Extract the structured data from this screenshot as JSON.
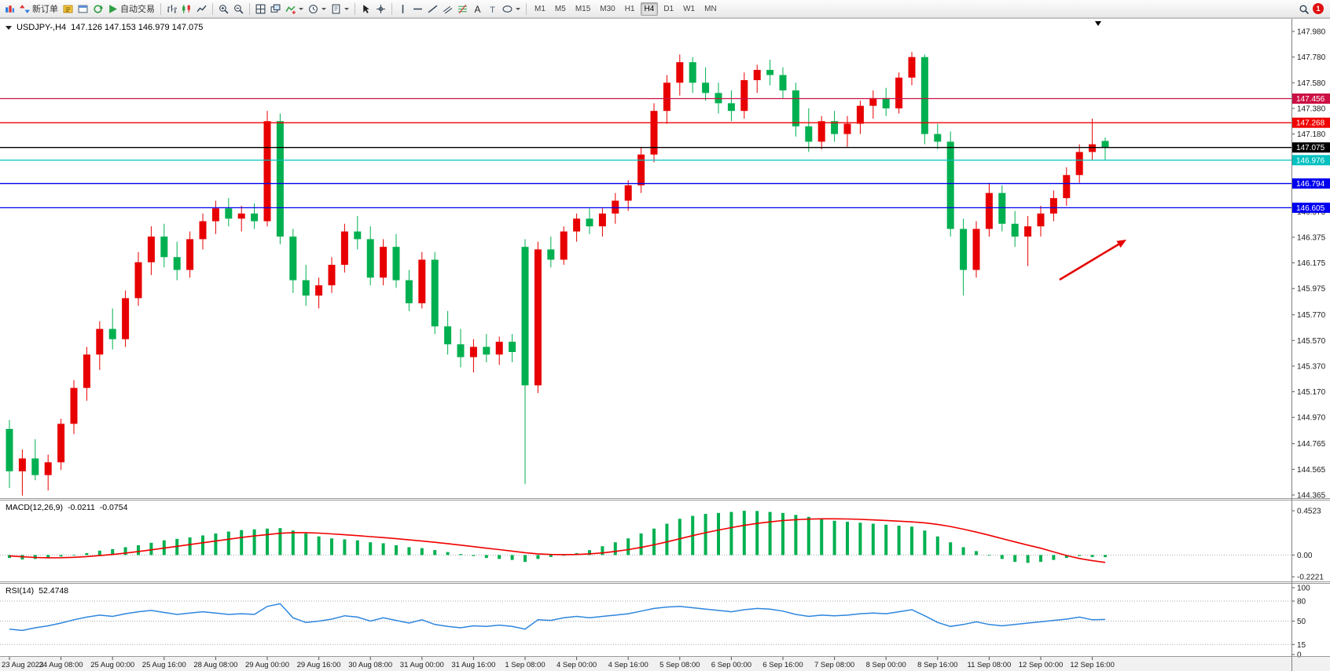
{
  "toolbar": {
    "items": [
      {
        "name": "new-chart",
        "icon": "chart"
      },
      {
        "name": "new-order",
        "icon": "order",
        "label": "新订单"
      },
      {
        "name": "metaeditor",
        "icon": "editor"
      },
      {
        "name": "market-watch",
        "icon": "window"
      },
      {
        "name": "navigator-refresh",
        "icon": "refresh"
      },
      {
        "name": "auto-trading",
        "icon": "play",
        "label": "自动交易"
      },
      {
        "sep": true
      },
      {
        "name": "bar-chart",
        "icon": "bars"
      },
      {
        "name": "candlestick-chart",
        "icon": "candles"
      },
      {
        "name": "line-chart",
        "icon": "linechart"
      },
      {
        "sep": true
      },
      {
        "name": "zoom-in",
        "icon": "zoomin"
      },
      {
        "name": "zoom-out",
        "icon": "zoomout"
      },
      {
        "sep": true
      },
      {
        "name": "tile-windows",
        "icon": "grid"
      },
      {
        "name": "auto-arrange",
        "icon": "arrange"
      },
      {
        "name": "indicators",
        "icon": "indicator",
        "dropdown": true
      },
      {
        "name": "periods",
        "icon": "clock",
        "dropdown": true
      },
      {
        "name": "templates",
        "icon": "template",
        "dropdown": true
      },
      {
        "sep": true
      },
      {
        "name": "cursor",
        "icon": "cursor"
      },
      {
        "name": "crosshair",
        "icon": "crosshair"
      },
      {
        "sep": true
      },
      {
        "name": "vertical-line",
        "icon": "vline"
      },
      {
        "name": "horizontal-line",
        "icon": "hline"
      },
      {
        "name": "trendline",
        "icon": "tline"
      },
      {
        "name": "equidistant-channel",
        "icon": "channel"
      },
      {
        "name": "fibonacci",
        "icon": "fibo"
      },
      {
        "name": "text",
        "icon": "textA"
      },
      {
        "name": "text-label",
        "icon": "textT"
      },
      {
        "name": "objects",
        "icon": "shapes",
        "dropdown": true
      },
      {
        "sep": true
      }
    ],
    "timeframes": [
      "M1",
      "M5",
      "M15",
      "M30",
      "H1",
      "H4",
      "D1",
      "W1",
      "MN"
    ],
    "active_timeframe": "H4",
    "notification_count": "1"
  },
  "chart_data": {
    "type": "candlestick",
    "title": {
      "symbol_period": "USDJPY-,H4",
      "ohlc": "147.126 147.153 146.979 147.075"
    },
    "ylim": [
      144.365,
      147.98
    ],
    "colors": {
      "up": "#e80000",
      "down": "#00b050",
      "macd": "#00b050",
      "signal": "#f00000",
      "rsi": "#2e86de",
      "arrow": "#e60000"
    },
    "price_axis": [
      "147.980",
      "147.780",
      "147.580",
      "147.380",
      "147.180",
      "146.575",
      "146.375",
      "146.175",
      "145.975",
      "145.770",
      "145.570",
      "145.370",
      "145.170",
      "144.970",
      "144.765",
      "144.565",
      "144.365"
    ],
    "hlines": [
      {
        "price": 147.456,
        "label": "147.456",
        "color": "#cc1044"
      },
      {
        "price": 147.268,
        "label": "147.268",
        "color": "#f00000"
      },
      {
        "price": 147.075,
        "label": "147.075",
        "color": "#000000"
      },
      {
        "price": 146.976,
        "label": "146.976",
        "color": "#00c0c0"
      },
      {
        "price": 146.794,
        "label": "146.794",
        "color": "#0000f0"
      },
      {
        "price": 146.605,
        "label": "146.605",
        "color": "#0000f0"
      }
    ],
    "time_labels": [
      "23 Aug 2023",
      "24 Aug 08:00",
      "25 Aug 00:00",
      "25 Aug 16:00",
      "28 Aug 08:00",
      "29 Aug 00:00",
      "29 Aug 16:00",
      "30 Aug 08:00",
      "31 Aug 00:00",
      "31 Aug 16:00",
      "1 Sep 08:00",
      "4 Sep 00:00",
      "4 Sep 16:00",
      "5 Sep 08:00",
      "6 Sep 00:00",
      "6 Sep 16:00",
      "7 Sep 08:00",
      "8 Sep 00:00",
      "8 Sep 16:00",
      "11 Sep 08:00",
      "12 Sep 00:00",
      "12 Sep 16:00"
    ],
    "candles": [
      [
        144.88,
        144.95,
        144.42,
        144.55
      ],
      [
        144.55,
        144.72,
        144.36,
        144.65
      ],
      [
        144.65,
        144.8,
        144.48,
        144.52
      ],
      [
        144.52,
        144.68,
        144.4,
        144.62
      ],
      [
        144.62,
        144.96,
        144.56,
        144.92
      ],
      [
        144.92,
        145.26,
        144.84,
        145.2
      ],
      [
        145.2,
        145.52,
        145.1,
        145.46
      ],
      [
        145.46,
        145.72,
        145.34,
        145.66
      ],
      [
        145.66,
        145.82,
        145.5,
        145.58
      ],
      [
        145.58,
        145.96,
        145.52,
        145.9
      ],
      [
        145.9,
        146.26,
        145.84,
        146.18
      ],
      [
        146.18,
        146.46,
        146.08,
        146.38
      ],
      [
        146.38,
        146.48,
        146.14,
        146.22
      ],
      [
        146.22,
        146.34,
        146.04,
        146.12
      ],
      [
        146.12,
        146.42,
        146.06,
        146.36
      ],
      [
        146.36,
        146.56,
        146.28,
        146.5
      ],
      [
        146.5,
        146.66,
        146.4,
        146.6
      ],
      [
        146.6,
        146.68,
        146.46,
        146.52
      ],
      [
        146.52,
        146.62,
        146.42,
        146.56
      ],
      [
        146.56,
        146.64,
        146.44,
        146.5
      ],
      [
        146.5,
        147.36,
        146.46,
        147.28
      ],
      [
        147.28,
        147.34,
        146.32,
        146.38
      ],
      [
        146.38,
        146.44,
        145.94,
        146.04
      ],
      [
        146.04,
        146.16,
        145.84,
        145.92
      ],
      [
        145.92,
        146.06,
        145.82,
        146.0
      ],
      [
        146.0,
        146.22,
        145.94,
        146.16
      ],
      [
        146.16,
        146.48,
        146.1,
        146.42
      ],
      [
        146.42,
        146.54,
        146.28,
        146.36
      ],
      [
        146.36,
        146.46,
        146.0,
        146.06
      ],
      [
        146.06,
        146.36,
        146.0,
        146.3
      ],
      [
        146.3,
        146.4,
        145.98,
        146.04
      ],
      [
        146.04,
        146.12,
        145.8,
        145.86
      ],
      [
        145.86,
        146.26,
        145.82,
        146.2
      ],
      [
        146.2,
        146.26,
        145.62,
        145.68
      ],
      [
        145.68,
        145.8,
        145.46,
        145.54
      ],
      [
        145.54,
        145.66,
        145.36,
        145.44
      ],
      [
        145.44,
        145.58,
        145.32,
        145.52
      ],
      [
        145.52,
        145.62,
        145.4,
        145.46
      ],
      [
        145.46,
        145.6,
        145.38,
        145.56
      ],
      [
        145.56,
        145.62,
        145.4,
        145.48
      ],
      [
        146.3,
        146.36,
        144.45,
        145.22
      ],
      [
        145.22,
        146.34,
        145.16,
        146.28
      ],
      [
        146.28,
        146.38,
        146.14,
        146.2
      ],
      [
        146.2,
        146.46,
        146.16,
        146.42
      ],
      [
        146.42,
        146.56,
        146.34,
        146.52
      ],
      [
        146.52,
        146.6,
        146.4,
        146.46
      ],
      [
        146.46,
        146.6,
        146.38,
        146.56
      ],
      [
        146.56,
        146.72,
        146.48,
        146.66
      ],
      [
        146.66,
        146.82,
        146.58,
        146.78
      ],
      [
        146.78,
        147.08,
        146.72,
        147.02
      ],
      [
        147.02,
        147.42,
        146.96,
        147.36
      ],
      [
        147.36,
        147.64,
        147.26,
        147.58
      ],
      [
        147.58,
        147.8,
        147.48,
        147.74
      ],
      [
        147.74,
        147.78,
        147.5,
        147.58
      ],
      [
        147.58,
        147.7,
        147.44,
        147.5
      ],
      [
        147.5,
        147.58,
        147.34,
        147.42
      ],
      [
        147.42,
        147.52,
        147.28,
        147.36
      ],
      [
        147.36,
        147.66,
        147.3,
        147.6
      ],
      [
        147.6,
        147.72,
        147.5,
        147.68
      ],
      [
        147.68,
        147.76,
        147.56,
        147.64
      ],
      [
        147.64,
        147.7,
        147.46,
        147.52
      ],
      [
        147.52,
        147.58,
        147.16,
        147.24
      ],
      [
        147.24,
        147.38,
        147.04,
        147.12
      ],
      [
        147.12,
        147.32,
        147.06,
        147.28
      ],
      [
        147.28,
        147.36,
        147.12,
        147.18
      ],
      [
        147.18,
        147.32,
        147.08,
        147.26
      ],
      [
        147.26,
        147.44,
        147.18,
        147.4
      ],
      [
        147.4,
        147.52,
        147.3,
        147.46
      ],
      [
        147.46,
        147.54,
        147.32,
        147.38
      ],
      [
        147.38,
        147.66,
        147.34,
        147.62
      ],
      [
        147.62,
        147.82,
        147.56,
        147.78
      ],
      [
        147.78,
        147.8,
        147.1,
        147.18
      ],
      [
        147.18,
        147.26,
        147.06,
        147.12
      ],
      [
        147.12,
        147.2,
        146.38,
        146.44
      ],
      [
        146.44,
        146.52,
        145.92,
        146.12
      ],
      [
        146.12,
        146.5,
        146.06,
        146.44
      ],
      [
        146.44,
        146.8,
        146.38,
        146.72
      ],
      [
        146.72,
        146.78,
        146.42,
        146.48
      ],
      [
        146.48,
        146.58,
        146.3,
        146.38
      ],
      [
        146.38,
        146.54,
        146.15,
        146.46
      ],
      [
        146.46,
        146.62,
        146.38,
        146.56
      ],
      [
        146.56,
        146.74,
        146.5,
        146.68
      ],
      [
        146.68,
        146.92,
        146.62,
        146.86
      ],
      [
        146.86,
        147.1,
        146.8,
        147.04
      ],
      [
        147.04,
        147.3,
        146.98,
        147.1
      ],
      [
        147.126,
        147.153,
        146.979,
        147.075
      ]
    ],
    "macd": {
      "label": "MACD(12,26,9)",
      "main_value": "-0.0211",
      "signal_value": "-0.0754",
      "axis": [
        "0.4523",
        "0.00",
        "-0.2221"
      ],
      "hist": [
        -0.03,
        -0.045,
        -0.04,
        -0.03,
        -0.015,
        0.0,
        0.02,
        0.045,
        0.06,
        0.08,
        0.1,
        0.125,
        0.15,
        0.165,
        0.18,
        0.2,
        0.22,
        0.24,
        0.255,
        0.262,
        0.27,
        0.275,
        0.25,
        0.22,
        0.19,
        0.17,
        0.16,
        0.15,
        0.13,
        0.12,
        0.1,
        0.08,
        0.07,
        0.05,
        0.03,
        0.01,
        -0.01,
        -0.03,
        -0.04,
        -0.05,
        -0.07,
        -0.04,
        -0.02,
        0.0,
        0.02,
        0.05,
        0.09,
        0.13,
        0.17,
        0.22,
        0.27,
        0.32,
        0.37,
        0.4,
        0.42,
        0.43,
        0.44,
        0.452,
        0.45,
        0.44,
        0.43,
        0.41,
        0.39,
        0.37,
        0.35,
        0.34,
        0.33,
        0.32,
        0.31,
        0.3,
        0.29,
        0.25,
        0.19,
        0.13,
        0.08,
        0.04,
        0.0,
        -0.04,
        -0.07,
        -0.08,
        -0.07,
        -0.05,
        -0.03,
        -0.01,
        -0.02,
        -0.0211
      ],
      "signal": [
        -0.01,
        -0.018,
        -0.025,
        -0.028,
        -0.027,
        -0.023,
        -0.016,
        -0.006,
        0.006,
        0.02,
        0.036,
        0.053,
        0.071,
        0.089,
        0.107,
        0.125,
        0.143,
        0.161,
        0.179,
        0.195,
        0.209,
        0.222,
        0.229,
        0.229,
        0.224,
        0.216,
        0.207,
        0.198,
        0.188,
        0.178,
        0.167,
        0.155,
        0.143,
        0.13,
        0.116,
        0.101,
        0.086,
        0.07,
        0.055,
        0.04,
        0.024,
        0.012,
        0.006,
        0.004,
        0.006,
        0.012,
        0.022,
        0.037,
        0.055,
        0.078,
        0.104,
        0.134,
        0.166,
        0.198,
        0.228,
        0.255,
        0.28,
        0.303,
        0.323,
        0.339,
        0.352,
        0.361,
        0.367,
        0.37,
        0.37,
        0.368,
        0.364,
        0.359,
        0.353,
        0.346,
        0.339,
        0.329,
        0.313,
        0.291,
        0.264,
        0.234,
        0.202,
        0.168,
        0.134,
        0.101,
        0.07,
        0.032,
        -0.005,
        -0.035,
        -0.058,
        -0.0754
      ]
    },
    "rsi": {
      "label": "RSI(14)",
      "value": "52.4748",
      "axis": [
        "100",
        "80",
        "50",
        "15",
        "0"
      ],
      "levels": [
        80,
        50,
        15
      ],
      "values": [
        38,
        36,
        40,
        43,
        47,
        52,
        56,
        59,
        57,
        61,
        64,
        66,
        63,
        60,
        62,
        64,
        62,
        60,
        61,
        60,
        72,
        76,
        55,
        48,
        50,
        53,
        58,
        56,
        50,
        55,
        51,
        47,
        52,
        45,
        42,
        40,
        43,
        42,
        44,
        42,
        38,
        52,
        51,
        55,
        57,
        55,
        57,
        59,
        61,
        65,
        69,
        71,
        72,
        70,
        68,
        66,
        64,
        67,
        69,
        68,
        65,
        60,
        57,
        59,
        58,
        59,
        61,
        62,
        61,
        64,
        67,
        58,
        48,
        42,
        45,
        49,
        45,
        43,
        45,
        47,
        49,
        51,
        53,
        56,
        52,
        52.47
      ]
    }
  }
}
